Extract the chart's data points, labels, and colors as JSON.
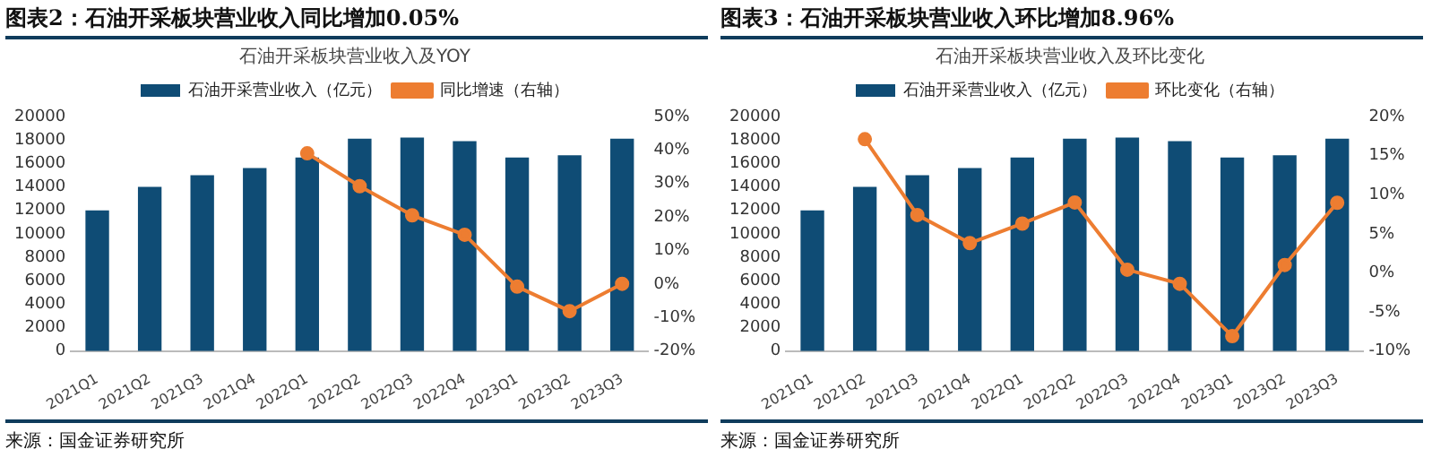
{
  "chart_data": [
    {
      "type": "bar",
      "title": "图表2：石油开采板块营业收入同比增加0.05%",
      "subtitle": "石油开采板块营业收入及YOY",
      "categories": [
        "2021Q1",
        "2021Q2",
        "2021Q3",
        "2021Q4",
        "2022Q1",
        "2022Q2",
        "2022Q3",
        "2022Q4",
        "2023Q1",
        "2023Q2",
        "2023Q3"
      ],
      "series": [
        {
          "name": "石油开采营业收入（亿元）",
          "color": "#0f4c75",
          "values": [
            12000,
            14000,
            15000,
            15600,
            16500,
            18100,
            18200,
            17900,
            16500,
            16700,
            18100
          ]
        },
        {
          "name": "同比增速（右轴）",
          "type": "line",
          "axis": "y2",
          "color": "#ed7d31",
          "values": [
            null,
            null,
            null,
            null,
            39,
            29.2,
            20.5,
            14.7,
            -0.8,
            -8.1,
            0.05
          ]
        }
      ],
      "ylim": [
        0,
        20000
      ],
      "yticks": [
        0,
        2000,
        4000,
        6000,
        8000,
        10000,
        12000,
        14000,
        16000,
        18000,
        20000
      ],
      "y2lim": [
        -20,
        50
      ],
      "y2ticks": [
        {
          "value": -20,
          "label": "-20%"
        },
        {
          "value": -10,
          "label": "-10%"
        },
        {
          "value": 0,
          "label": "0%"
        },
        {
          "value": 10,
          "label": "10%"
        },
        {
          "value": 20,
          "label": "20%"
        },
        {
          "value": 30,
          "label": "30%"
        },
        {
          "value": 40,
          "label": "40%"
        },
        {
          "value": 50,
          "label": "50%"
        }
      ],
      "grid": false,
      "legend": "top",
      "marker": "circle",
      "annotations": [
        "来源：国金证券研究所"
      ]
    },
    {
      "type": "bar",
      "title": "图表3：石油开采板块营业收入环比增加8.96%",
      "subtitle": "石油开采板块营业收入及环比变化",
      "categories": [
        "2021Q1",
        "2021Q2",
        "2021Q3",
        "2021Q4",
        "2022Q1",
        "2022Q2",
        "2022Q3",
        "2022Q4",
        "2023Q1",
        "2023Q2",
        "2023Q3"
      ],
      "series": [
        {
          "name": "石油开采营业收入（亿元）",
          "color": "#0f4c75",
          "values": [
            12000,
            14000,
            15000,
            15600,
            16500,
            18100,
            18200,
            17900,
            16500,
            16700,
            18100
          ]
        },
        {
          "name": "环比变化（右轴）",
          "type": "line",
          "axis": "y2",
          "color": "#ed7d31",
          "values": [
            null,
            17.1,
            7.4,
            3.8,
            6.3,
            9.0,
            0.4,
            -1.4,
            -8.1,
            1.0,
            8.96
          ]
        }
      ],
      "ylim": [
        0,
        20000
      ],
      "yticks": [
        0,
        2000,
        4000,
        6000,
        8000,
        10000,
        12000,
        14000,
        16000,
        18000,
        20000
      ],
      "y2lim": [
        -10,
        20
      ],
      "y2ticks": [
        {
          "value": -10,
          "label": "-10%"
        },
        {
          "value": -5,
          "label": "-5%"
        },
        {
          "value": 0,
          "label": "0%"
        },
        {
          "value": 5,
          "label": "5%"
        },
        {
          "value": 10,
          "label": "10%"
        },
        {
          "value": 15,
          "label": "15%"
        },
        {
          "value": 20,
          "label": "20%"
        }
      ],
      "grid": false,
      "legend": "top",
      "marker": "circle",
      "annotations": [
        "来源：国金证券研究所"
      ]
    }
  ]
}
